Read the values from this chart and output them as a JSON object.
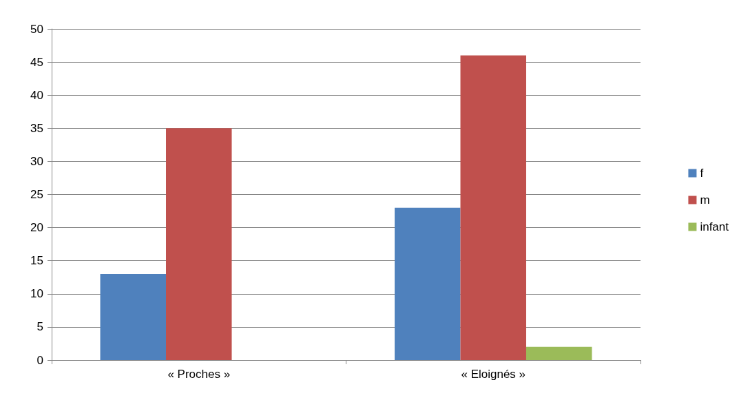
{
  "chart_data": {
    "type": "bar",
    "categories": [
      "« Proches »",
      "« Eloignés »"
    ],
    "series": [
      {
        "name": "f",
        "color": "#4f81bd",
        "values": [
          13,
          23
        ]
      },
      {
        "name": "m",
        "color": "#c0504d",
        "values": [
          35,
          46
        ]
      },
      {
        "name": "infant",
        "color": "#9bbb59",
        "values": [
          0,
          2
        ]
      }
    ],
    "ylim": [
      0,
      50
    ],
    "yticks": [
      0,
      5,
      10,
      15,
      20,
      25,
      30,
      35,
      40,
      45,
      50
    ],
    "grid": "y",
    "legend": "right"
  }
}
